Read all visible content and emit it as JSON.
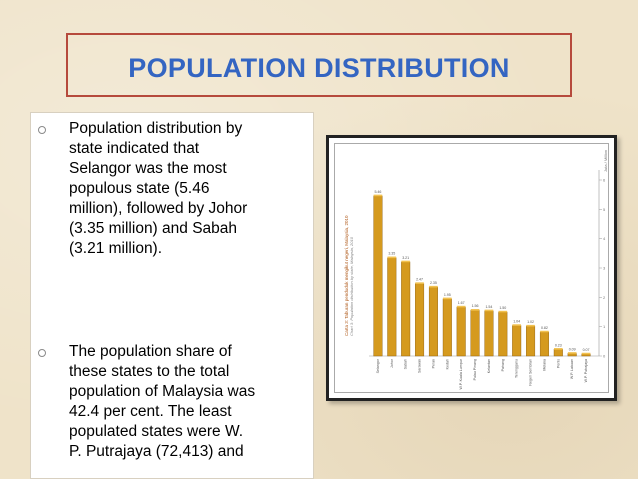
{
  "title": "POPULATION DISTRIBUTION",
  "bullets": [
    {
      "lines": [
        "Population distribution by",
        "state indicated that",
        "Selangor was the most",
        "populous state (5.46",
        "million), followed by Johor",
        "(3.35 million) and Sabah",
        "(3.21 million)."
      ]
    },
    {
      "lines": [
        "The population share of",
        "these states to the total",
        "population of Malaysia was",
        "42.4 per cent. The least",
        "populated states were W.",
        "P. Putrajaya (72,413) and"
      ]
    }
  ],
  "chart_data": {
    "type": "bar",
    "title": "Carta 3: Taburan penduduk mengikut negeri, Malaysia, 2010",
    "subtitle": "Chart 3: Population distribution by state, Malaysia, 2010",
    "ylabel": "Juta / Million",
    "ylim": [
      0,
      6
    ],
    "yticks": [
      0,
      1,
      2,
      3,
      4,
      5,
      6
    ],
    "categories": [
      "Selangor",
      "Johor",
      "Sabah",
      "Sarawak",
      "Perak",
      "Kedah",
      "W.P. Kuala Lumpur",
      "Pulau Pinang",
      "Kelantan",
      "Pahang",
      "Terengganu",
      "Negeri Sembilan",
      "Melaka",
      "Perlis",
      "W.P. Labuan",
      "W.P. Putrajaya"
    ],
    "values": [
      5.46,
      3.35,
      3.21,
      2.47,
      2.35,
      1.95,
      1.67,
      1.56,
      1.54,
      1.5,
      1.04,
      1.02,
      0.82,
      0.23,
      0.09,
      0.07
    ],
    "bar_color": "#d59a1e"
  }
}
